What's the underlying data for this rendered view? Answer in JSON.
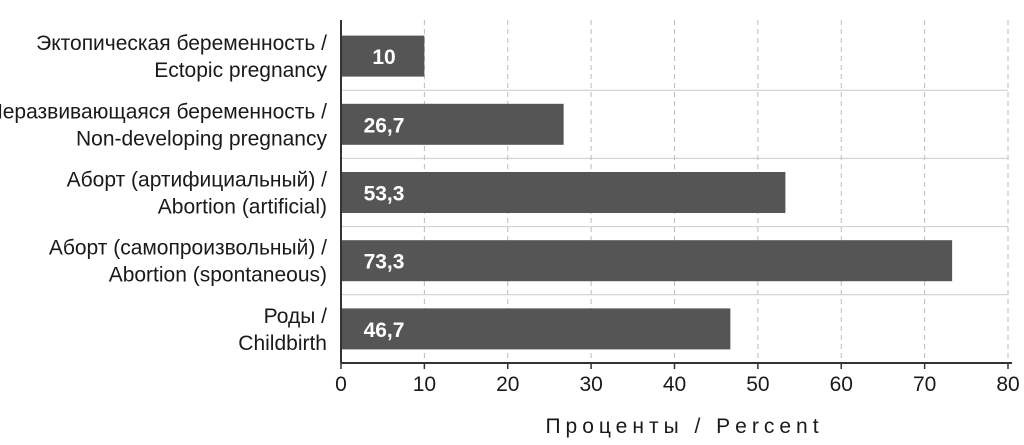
{
  "chart_data": {
    "type": "bar",
    "orientation": "horizontal",
    "categories": [
      [
        "Эктопическая беременность /",
        "Ectopic pregnancy"
      ],
      [
        "Неразвивающаяся беременность /",
        "Non-developing pregnancy"
      ],
      [
        "Аборт (артифициальный) /",
        "Abortion (artificial)"
      ],
      [
        "Аборт (самопроизвольный) /",
        "Abortion (spontaneous)"
      ],
      [
        "Роды /",
        "Childbirth"
      ]
    ],
    "values": [
      10,
      26.7,
      53.3,
      73.3,
      46.7
    ],
    "data_labels": [
      "10",
      "26,7",
      "53,3",
      "73,3",
      "46,7"
    ],
    "xlabel": "Проценты / Percent",
    "xlim": [
      0,
      80
    ],
    "xticks": [
      0,
      10,
      20,
      30,
      40,
      50,
      60,
      70,
      80
    ],
    "grid": "vertical dashed",
    "colors": {
      "bar": "#555555",
      "grid": "#bbbbbb",
      "axis": "#333333",
      "separator": "#cccccc"
    }
  }
}
